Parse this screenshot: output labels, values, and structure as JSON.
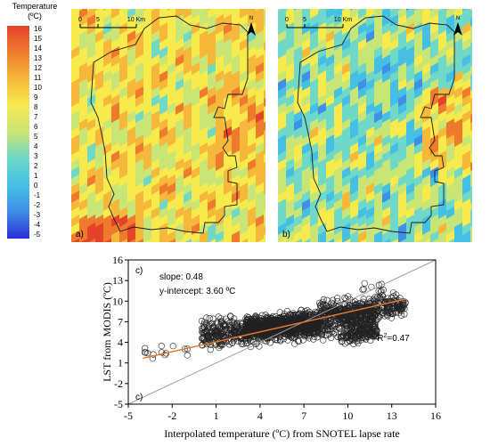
{
  "legend": {
    "title_line1": "Temperature",
    "title_line2": "(ºC)",
    "ticks": [
      "16",
      "15",
      "14",
      "13",
      "12",
      "11",
      "10",
      "9",
      "8",
      "7",
      "6",
      "5",
      "4",
      "3",
      "2",
      "1",
      "0",
      "-1",
      "-2",
      "-3",
      "-4",
      "-5"
    ],
    "colors": [
      "#2a2fd6",
      "#3f8fe6",
      "#45c0e4",
      "#6fd8c6",
      "#c9e576",
      "#f6ea4c",
      "#f6b83a",
      "#ee7a2c",
      "#e4432a"
    ]
  },
  "maps": [
    {
      "panel_label": "a)",
      "scale_labels": [
        "0",
        "5",
        "10 Km"
      ],
      "north": "N",
      "dominant": [
        "#f6ea4c",
        "#c9e576",
        "#6fd8c6",
        "#45c0e4",
        "#f6b83a"
      ]
    },
    {
      "panel_label": "b)",
      "scale_labels": [
        "0",
        "5",
        "10 Km"
      ],
      "north": "N",
      "dominant": [
        "#45c0e4",
        "#6fd8c6",
        "#c9e576",
        "#f6ea4c",
        "#3f8fe6",
        "#f6b83a",
        "#ee7a2c"
      ]
    }
  ],
  "chart_data": {
    "type": "scatter",
    "panel_label_top": "c)",
    "panel_label_bottom": "c)",
    "xlabel": "Interpolated temperature (ºC) from SNOTEL lapse rate",
    "ylabel": "LST from MODIS (ºC)",
    "xlim": [
      -5,
      16
    ],
    "ylim": [
      -5,
      16
    ],
    "xticks": [
      "-5",
      "-2",
      "1",
      "4",
      "7",
      "10",
      "13",
      "16"
    ],
    "yticks": [
      "16",
      "13",
      "10",
      "7",
      "4",
      "1",
      "-2",
      "-5"
    ],
    "annotations": {
      "slope": "slope: 0.48",
      "intercept": "y-intercept: 3.60 ºC",
      "r2_prefix": "R",
      "r2_sup": "2",
      "r2_suffix": "=0.47"
    },
    "fit_line": {
      "slope": 0.48,
      "intercept": 3.6,
      "x_range": [
        -4,
        14
      ],
      "color": "#e6792a"
    },
    "one_to_one_line": {
      "color": "#a0a0a0"
    },
    "clusters": [
      {
        "xmin": 0,
        "xmax": 12,
        "ymin": 2,
        "ymax": 10,
        "n": 900
      },
      {
        "xmin": 3,
        "xmax": 8,
        "ymin": 4,
        "ymax": 9,
        "n": 700
      },
      {
        "xmin": 8,
        "xmax": 14,
        "ymin": 6,
        "ymax": 12,
        "n": 350
      },
      {
        "xmin": 9.5,
        "xmax": 12,
        "ymin": 1,
        "ymax": 5,
        "n": 120
      },
      {
        "xmin": -4,
        "xmax": 0,
        "ymin": 1,
        "ymax": 5,
        "n": 14
      },
      {
        "xmin": 11,
        "xmax": 12.5,
        "ymin": 12,
        "ymax": 15,
        "n": 10
      }
    ]
  }
}
